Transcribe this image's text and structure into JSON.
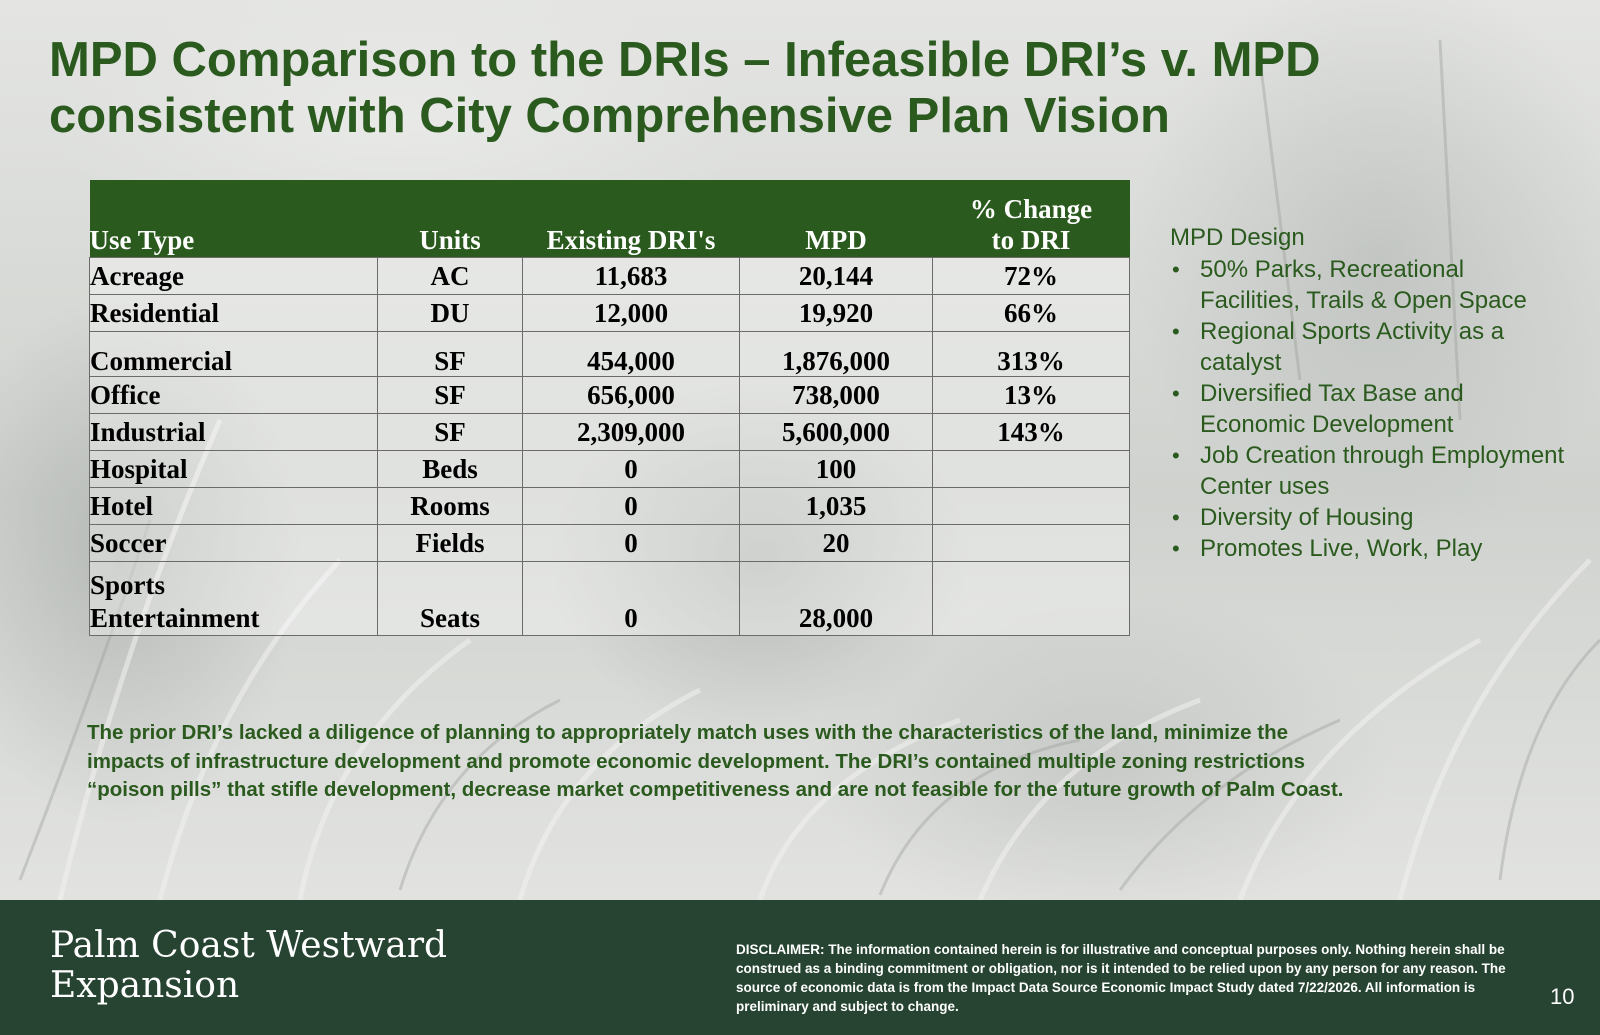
{
  "slide": {
    "title_line1": "MPD Comparison to the DRIs – Infeasible DRI’s v. MPD",
    "title_line2": "consistent with City Comprehensive Plan Vision"
  },
  "table": {
    "headers": {
      "use_type": "Use Type",
      "units": "Units",
      "existing": "Existing DRI's",
      "mpd": "MPD",
      "change_line1": "% Change",
      "change_line2": "to DRI"
    },
    "rows": [
      {
        "use_type": "Acreage",
        "units": "AC",
        "existing": "11,683",
        "mpd": "20,144",
        "change": "72%"
      },
      {
        "use_type": "Residential",
        "units": "DU",
        "existing": "12,000",
        "mpd": "19,920",
        "change": "66%"
      },
      {
        "use_type": "Commercial",
        "units": "SF",
        "existing": "454,000",
        "mpd": "1,876,000",
        "change": "313%"
      },
      {
        "use_type": "Office",
        "units": "SF",
        "existing": "656,000",
        "mpd": "738,000",
        "change": "13%"
      },
      {
        "use_type": "Industrial",
        "units": "SF",
        "existing": "2,309,000",
        "mpd": "5,600,000",
        "change": "143%"
      },
      {
        "use_type": "Hospital",
        "units": "Beds",
        "existing": "0",
        "mpd": "100",
        "change": ""
      },
      {
        "use_type": "Hotel",
        "units": "Rooms",
        "existing": "0",
        "mpd": "1,035",
        "change": ""
      },
      {
        "use_type": "Soccer",
        "units": "Fields",
        "existing": "0",
        "mpd": "20",
        "change": ""
      },
      {
        "use_type_line1": "Sports",
        "use_type_line2": "Entertainment",
        "units": "Seats",
        "existing": "0",
        "mpd": "28,000",
        "change": ""
      }
    ]
  },
  "sidebar": {
    "title": "MPD Design",
    "bullet_char": "•",
    "items": [
      "50% Parks, Recreational Facilities, Trails & Open Space",
      "Regional Sports Activity as a catalyst",
      "Diversified Tax Base and Economic Development",
      "Job Creation through Employment Center uses",
      "Diversity of Housing",
      "Promotes Live, Work, Play"
    ]
  },
  "paragraph": "The prior DRI’s lacked a diligence of planning to appropriately match uses with the characteristics of the land, minimize the impacts of infrastructure development and promote economic development.  The DRI’s contained multiple zoning restrictions “poison pills” that stifle development, decrease market competitiveness and are not feasible for the future growth of Palm Coast.",
  "footer": {
    "brand_line1": "Palm Coast Westward",
    "brand_line2": "Expansion",
    "disclaimer": "DISCLAIMER: The information contained herein is for illustrative and conceptual purposes only. Nothing herein shall be construed as a binding commitment or obligation, nor is it intended to be relied upon by any person for any reason.  The source of economic data is from the Impact Data Source Economic Impact Study dated 7/22/2026. All information is preliminary and subject to change.",
    "page_number": "10"
  },
  "colors": {
    "title_green": "#2b5a1e",
    "header_green": "#2b5a1e",
    "footer_green": "#264431"
  }
}
